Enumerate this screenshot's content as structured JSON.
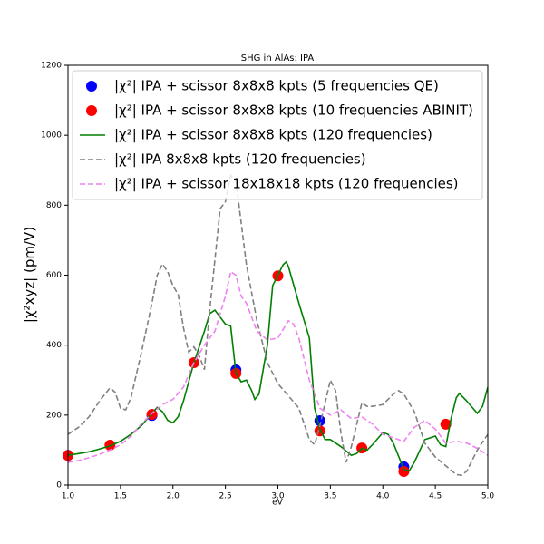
{
  "chart_data": {
    "type": "line",
    "title": "SHG in AlAs: IPA",
    "x_label": "eV",
    "y_label": "|χ²xyz| (pm/V)",
    "xlim": [
      1.0,
      5.0
    ],
    "ylim": [
      0,
      1200
    ],
    "xticks": [
      {
        "value": 1.0,
        "label": "1.0"
      },
      1.5,
      {
        "value": 2.0,
        "label": "2.0"
      },
      2.5,
      {
        "value": 3.0,
        "label": "3.0"
      },
      3.5,
      {
        "value": 4.0,
        "label": "4.0"
      },
      4.5,
      {
        "value": 5.0,
        "label": "5.0"
      }
    ],
    "yticks": [
      0,
      200,
      400,
      600,
      800,
      1000,
      1200
    ],
    "legend": "upper center",
    "series": [
      {
        "name": "|χ²| IPA + scissor 8x8x8 kpts (5 frequencies QE)",
        "color": "#0000ff",
        "style": "marker",
        "x": [
          1.0,
          1.8,
          2.6,
          3.4,
          4.2
        ],
        "values": [
          85,
          199,
          329,
          184,
          52
        ]
      },
      {
        "name": "|χ²| IPA + scissor 8x8x8 kpts (10 frequencies ABINIT)",
        "color": "#ff0000",
        "style": "marker",
        "x": [
          1.0,
          1.4,
          1.8,
          2.2,
          2.6,
          3.0,
          3.4,
          3.8,
          4.2,
          4.6
        ],
        "values": [
          85,
          114,
          202,
          350,
          319,
          598,
          155,
          106,
          39,
          174
        ]
      },
      {
        "name": "|χ²| IPA + scissor 8x8x8 kpts (120 frequencies)",
        "color": "#008000",
        "style": "solid",
        "x": [
          1.0,
          1.1,
          1.2,
          1.3,
          1.4,
          1.5,
          1.6,
          1.7,
          1.8,
          1.85,
          1.9,
          1.95,
          2.0,
          2.05,
          2.1,
          2.2,
          2.3,
          2.35,
          2.4,
          2.45,
          2.5,
          2.55,
          2.6,
          2.65,
          2.7,
          2.75,
          2.78,
          2.82,
          2.9,
          2.95,
          3.0,
          3.05,
          3.08,
          3.1,
          3.2,
          3.3,
          3.35,
          3.4,
          3.45,
          3.5,
          3.55,
          3.6,
          3.7,
          3.75,
          3.8,
          3.85,
          3.9,
          4.0,
          4.05,
          4.1,
          4.2,
          4.25,
          4.3,
          4.4,
          4.5,
          4.55,
          4.6,
          4.65,
          4.7,
          4.73,
          4.8,
          4.9,
          4.95,
          5.0
        ],
        "values": [
          85,
          90,
          95,
          103,
          112,
          125,
          145,
          170,
          205,
          222,
          210,
          185,
          178,
          195,
          240,
          350,
          440,
          490,
          500,
          480,
          460,
          455,
          320,
          295,
          300,
          270,
          245,
          260,
          400,
          570,
          600,
          630,
          638,
          625,
          520,
          420,
          220,
          160,
          130,
          130,
          120,
          110,
          85,
          90,
          105,
          100,
          115,
          150,
          145,
          120,
          45,
          40,
          65,
          130,
          140,
          115,
          110,
          190,
          250,
          262,
          240,
          205,
          225,
          280
        ]
      },
      {
        "name": "|χ²| IPA 8x8x8 kpts (120 frequencies)",
        "color": "#808080",
        "style": "dashed",
        "x": [
          1.0,
          1.1,
          1.2,
          1.3,
          1.4,
          1.45,
          1.5,
          1.55,
          1.6,
          1.7,
          1.8,
          1.85,
          1.9,
          1.95,
          2.0,
          2.05,
          2.1,
          2.15,
          2.2,
          2.25,
          2.3,
          2.35,
          2.45,
          2.5,
          2.55,
          2.6,
          2.7,
          2.8,
          2.9,
          3.0,
          3.1,
          3.2,
          3.3,
          3.35,
          3.4,
          3.5,
          3.55,
          3.6,
          3.65,
          3.7,
          3.8,
          3.85,
          3.9,
          4.0,
          4.1,
          4.15,
          4.2,
          4.3,
          4.4,
          4.5,
          4.6,
          4.7,
          4.75,
          4.8,
          4.9,
          5.0
        ],
        "values": [
          145,
          165,
          195,
          240,
          278,
          265,
          220,
          215,
          250,
          380,
          520,
          600,
          632,
          610,
          570,
          545,
          450,
          380,
          395,
          370,
          330,
          500,
          790,
          810,
          885,
          870,
          630,
          470,
          350,
          290,
          255,
          220,
          130,
          115,
          170,
          300,
          270,
          150,
          65,
          110,
          235,
          225,
          225,
          230,
          260,
          270,
          260,
          210,
          120,
          80,
          55,
          30,
          28,
          40,
          100,
          145
        ]
      },
      {
        "name": "|χ²| IPA + scissor 18x18x18 kpts (120 frequencies)",
        "color": "#ee82ee",
        "style": "dashed",
        "x": [
          1.0,
          1.1,
          1.2,
          1.3,
          1.4,
          1.5,
          1.6,
          1.7,
          1.8,
          1.9,
          2.0,
          2.1,
          2.2,
          2.3,
          2.4,
          2.5,
          2.55,
          2.6,
          2.65,
          2.7,
          2.75,
          2.8,
          2.9,
          3.0,
          3.1,
          3.15,
          3.2,
          3.3,
          3.4,
          3.5,
          3.6,
          3.7,
          3.8,
          3.9,
          4.0,
          4.1,
          4.2,
          4.3,
          4.4,
          4.5,
          4.6,
          4.7,
          4.8,
          4.9,
          5.0
        ],
        "values": [
          65,
          70,
          78,
          88,
          100,
          115,
          140,
          175,
          205,
          230,
          245,
          280,
          350,
          400,
          440,
          540,
          610,
          600,
          540,
          520,
          480,
          440,
          415,
          420,
          470,
          460,
          420,
          300,
          220,
          200,
          215,
          190,
          195,
          175,
          145,
          135,
          125,
          165,
          185,
          160,
          120,
          125,
          120,
          105,
          85
        ]
      }
    ]
  }
}
